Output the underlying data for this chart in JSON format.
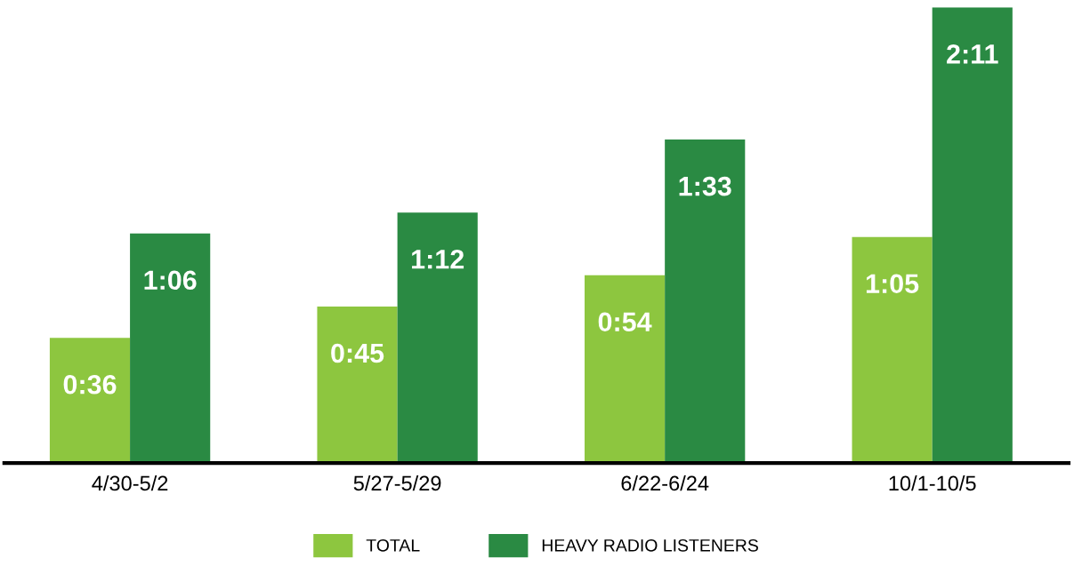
{
  "chart_data": {
    "type": "bar",
    "categories": [
      "4/30-5/2",
      "5/27-5/29",
      "6/22-6/24",
      "10/1-10/5"
    ],
    "series": [
      {
        "name": "TOTAL",
        "color": "#8dc63f",
        "values": [
          36,
          45,
          54,
          65
        ],
        "value_labels": [
          "0:36",
          "0:45",
          "0:54",
          "1:05"
        ]
      },
      {
        "name": "HEAVY RADIO LISTENERS",
        "color": "#2a8a43",
        "values": [
          66,
          72,
          93,
          131
        ],
        "value_labels": [
          "1:06",
          "1:12",
          "1:33",
          "2:11"
        ]
      }
    ],
    "ylim": [
      0,
      131
    ],
    "tick_labels": "x",
    "grid": false,
    "legend": "bottom"
  }
}
